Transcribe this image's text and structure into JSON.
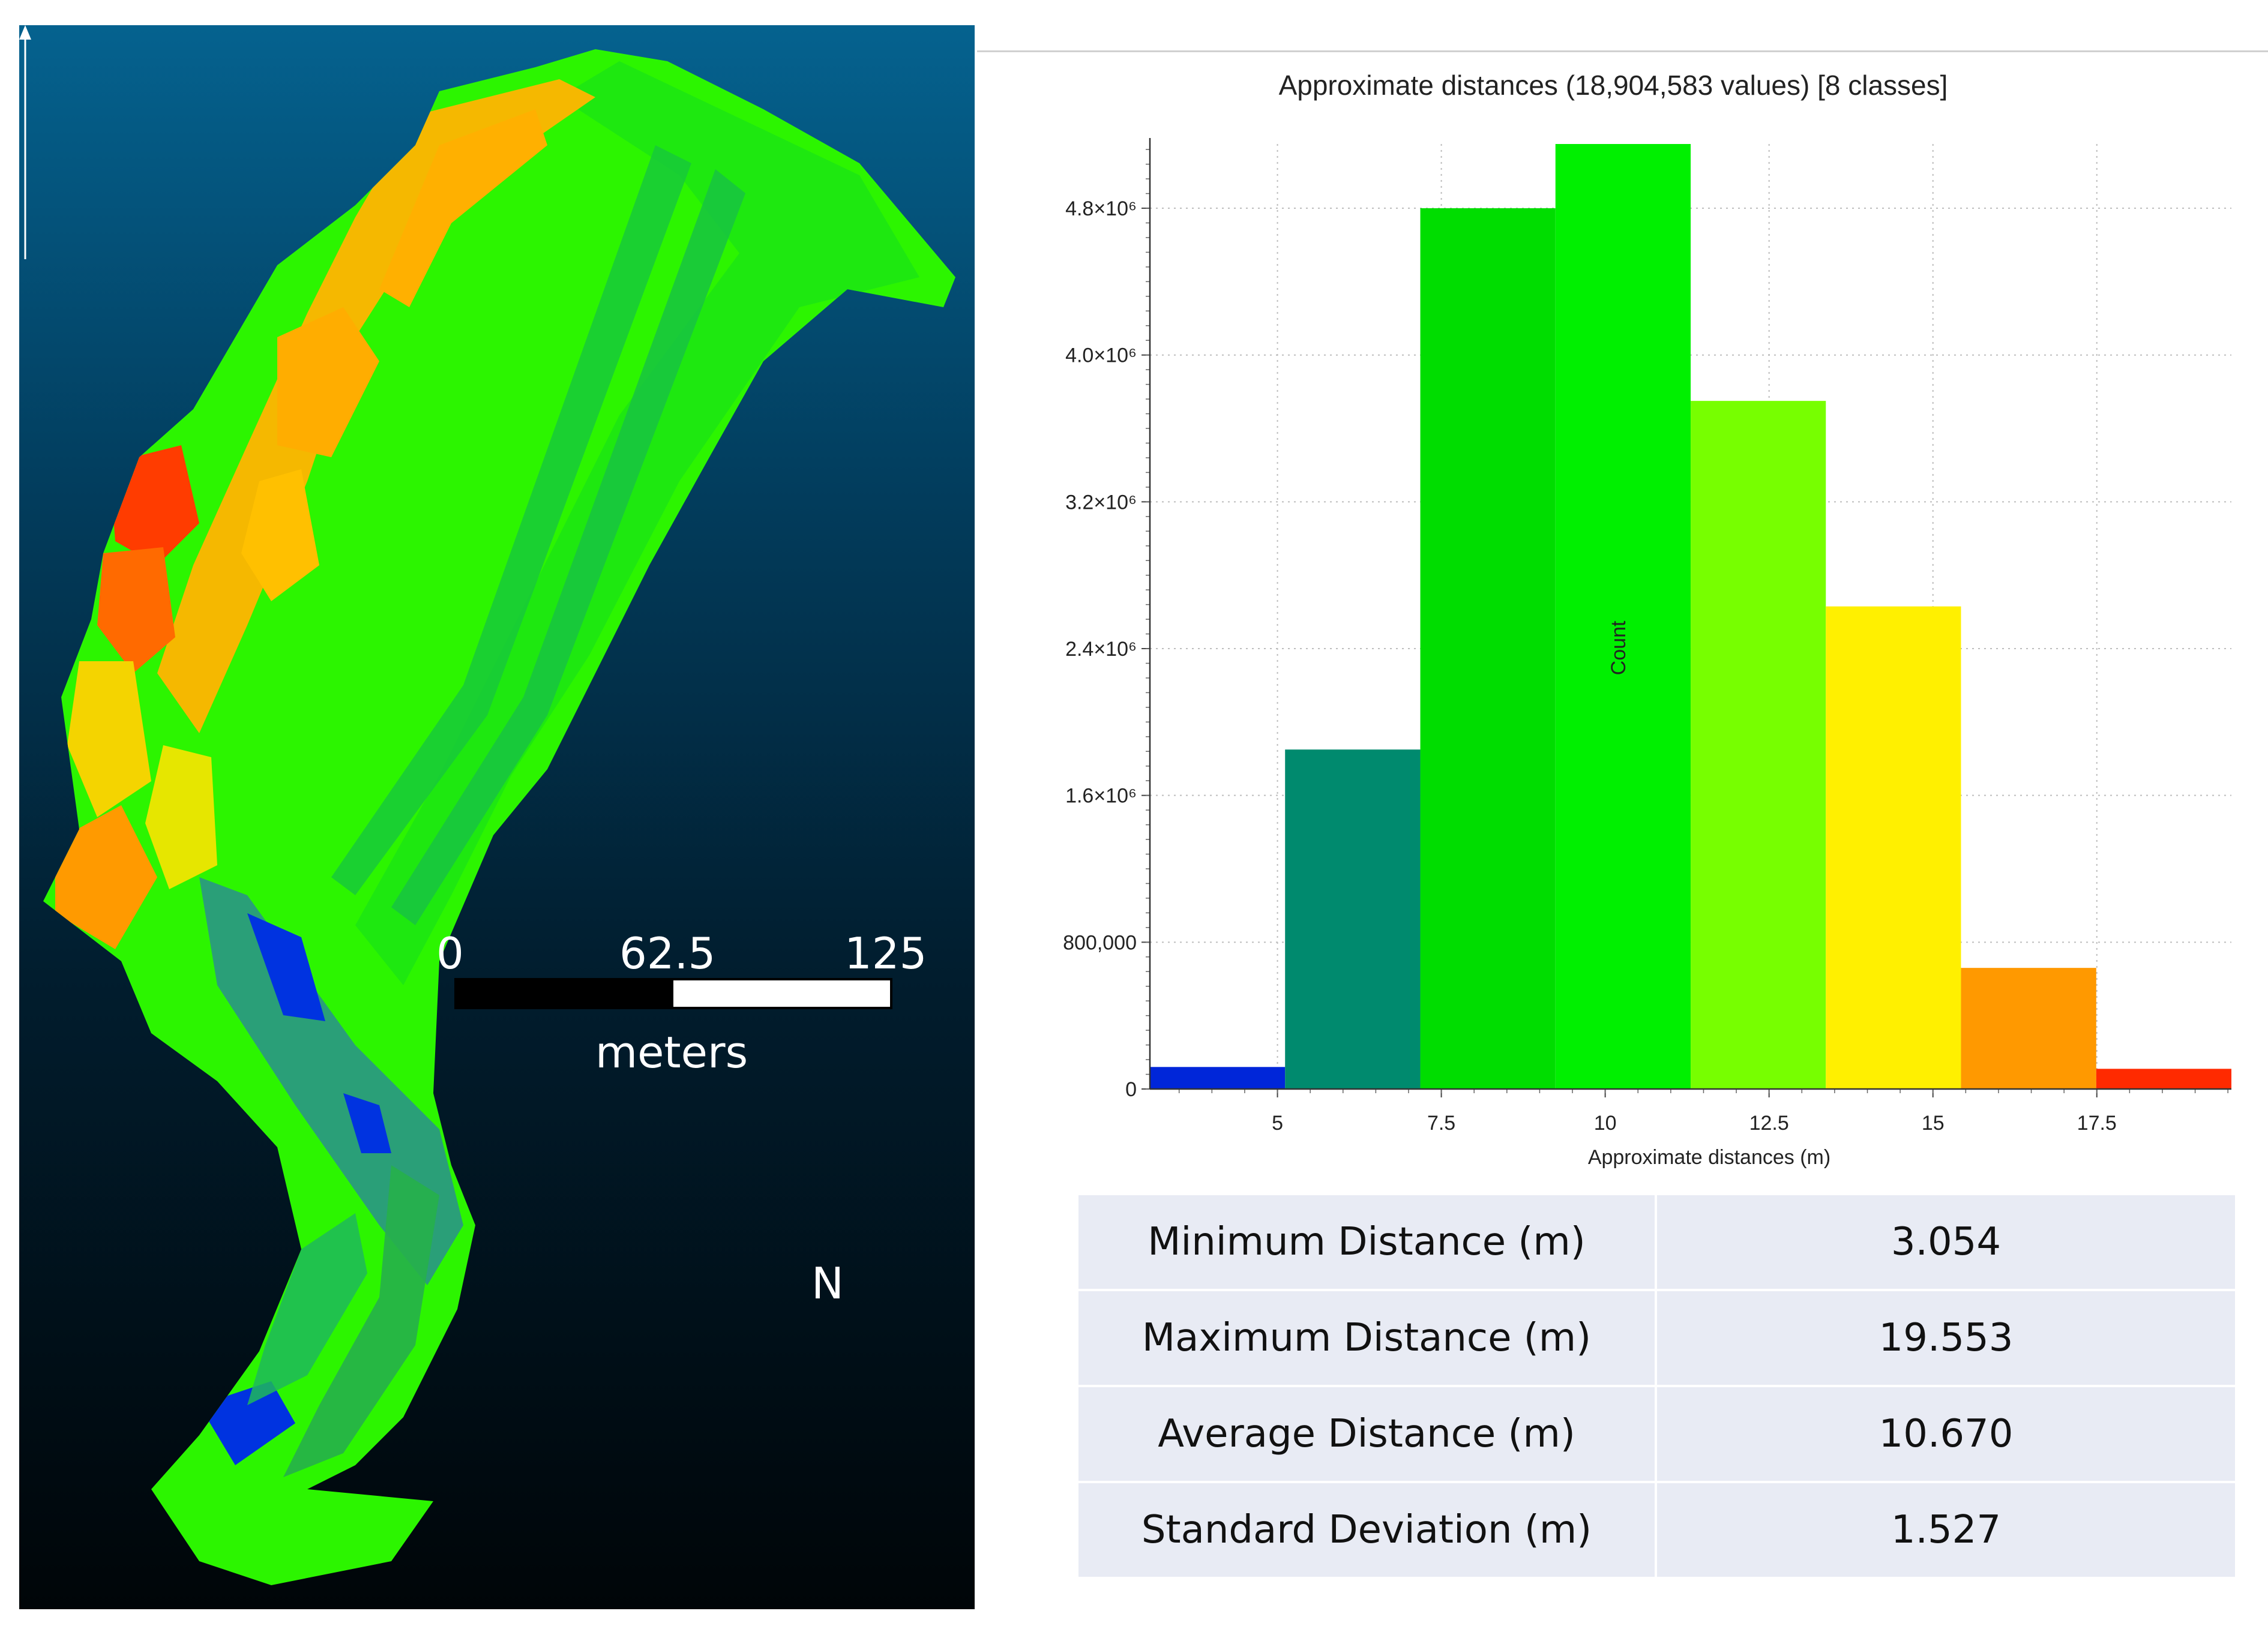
{
  "map": {
    "scale_bar": {
      "labels": [
        "0",
        "62.5",
        "125"
      ],
      "unit": "meters"
    },
    "north_label": "N",
    "background_colors": [
      "#05628f",
      "#000508"
    ],
    "surface_colors": [
      "#0026e6",
      "#008f6b",
      "#00e600",
      "#0bff00",
      "#77ff00",
      "#ffea00",
      "#ff9900",
      "#ff2a00"
    ]
  },
  "chart_data": {
    "type": "bar",
    "title": "Approximate distances (18,904,583 values) [8 classes]",
    "xlabel": "Approximate distances (m)",
    "ylabel": "Count",
    "x_ticks": [
      "5",
      "7.5",
      "10",
      "12.5",
      "15",
      "17.5"
    ],
    "x_tick_values": [
      5,
      7.5,
      10,
      12.5,
      15,
      17.5
    ],
    "xlim": [
      3.054,
      19.553
    ],
    "y_ticks": [
      "0",
      "800,000",
      "1.6×10⁶",
      "2.4×10⁶",
      "3.2×10⁶",
      "4.0×10⁶",
      "4.8×10⁶"
    ],
    "y_tick_values": [
      0,
      800000,
      1600000,
      2400000,
      3200000,
      4000000,
      4800000
    ],
    "ylim": [
      0,
      5150000
    ],
    "bins": [
      {
        "start": 3.054,
        "end": 5.116,
        "count": 120000,
        "color": "#0026d9"
      },
      {
        "start": 5.116,
        "end": 7.179,
        "count": 1850000,
        "color": "#008a6e"
      },
      {
        "start": 7.179,
        "end": 9.241,
        "count": 4800000,
        "color": "#00dd00"
      },
      {
        "start": 9.241,
        "end": 11.304,
        "count": 5150000,
        "color": "#00f000"
      },
      {
        "start": 11.304,
        "end": 13.366,
        "count": 3750000,
        "color": "#77ff00"
      },
      {
        "start": 13.366,
        "end": 15.428,
        "count": 2630000,
        "color": "#fff000"
      },
      {
        "start": 15.428,
        "end": 17.491,
        "count": 660000,
        "color": "#ff9900"
      },
      {
        "start": 17.491,
        "end": 19.553,
        "count": 110000,
        "color": "#ff2a00"
      }
    ],
    "grid": true
  },
  "stats": [
    {
      "label": "Minimum Distance (m)",
      "value": "3.054"
    },
    {
      "label": "Maximum Distance (m)",
      "value": "19.553"
    },
    {
      "label": "Average Distance (m)",
      "value": "10.670"
    },
    {
      "label": "Standard Deviation (m)",
      "value": "1.527"
    }
  ]
}
